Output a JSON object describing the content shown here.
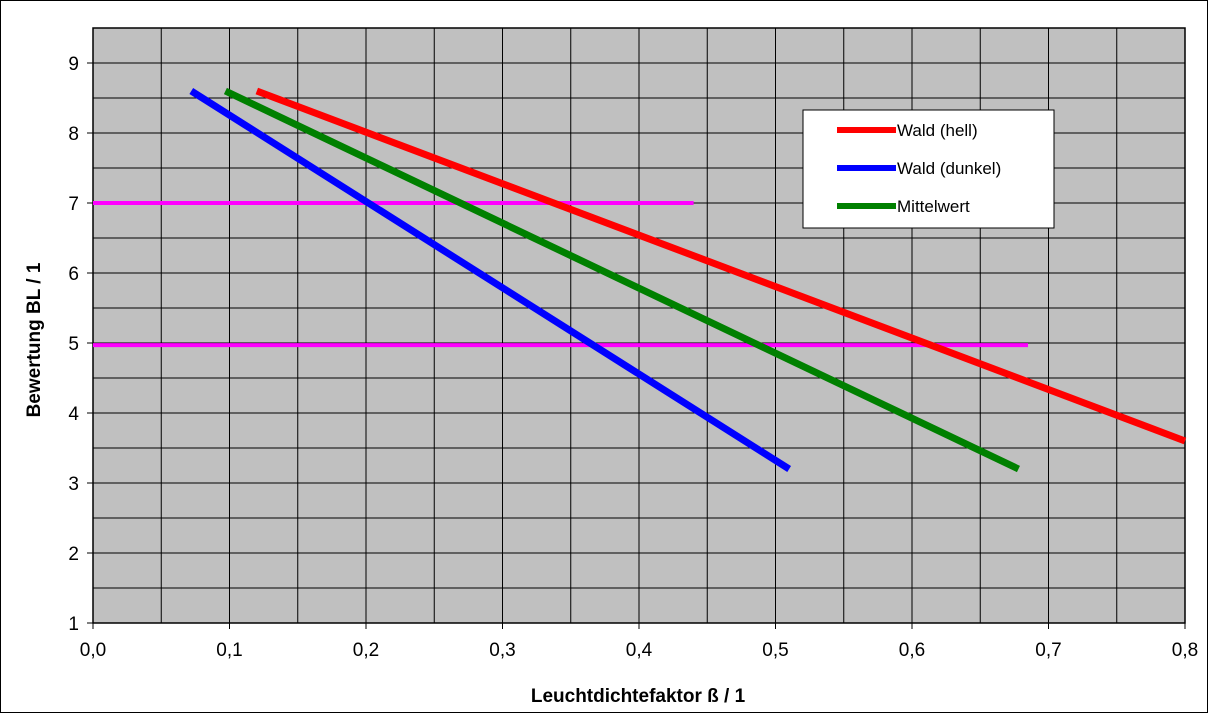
{
  "chart_data": {
    "type": "line",
    "xlabel": "Leuchtdichtefaktor ß / 1",
    "ylabel": "Bewertung BL / 1",
    "xlim": [
      0.0,
      0.8
    ],
    "ylim": [
      1,
      9.5
    ],
    "x_ticks": [
      {
        "value": 0.0,
        "label": "0,0"
      },
      {
        "value": 0.1,
        "label": "0,1"
      },
      {
        "value": 0.2,
        "label": "0,2"
      },
      {
        "value": 0.3,
        "label": "0,3"
      },
      {
        "value": 0.4,
        "label": "0,4"
      },
      {
        "value": 0.5,
        "label": "0,5"
      },
      {
        "value": 0.6,
        "label": "0,6"
      },
      {
        "value": 0.7,
        "label": "0,7"
      },
      {
        "value": 0.8,
        "label": "0,8"
      }
    ],
    "y_ticks": [
      {
        "value": 1,
        "label": "1"
      },
      {
        "value": 2,
        "label": "2"
      },
      {
        "value": 3,
        "label": "3"
      },
      {
        "value": 4,
        "label": "4"
      },
      {
        "value": 5,
        "label": "5"
      },
      {
        "value": 6,
        "label": "6"
      },
      {
        "value": 7,
        "label": "7"
      },
      {
        "value": 8,
        "label": "8"
      },
      {
        "value": 9,
        "label": "9"
      }
    ],
    "x_grid_step": 0.05,
    "y_grid_step": 0.5,
    "grid": true,
    "plot_background": "#c0c0c0",
    "legend_position": "top-right",
    "series": [
      {
        "name": "Wald (hell)",
        "color": "#ff0000",
        "x": [
          0.12,
          0.8
        ],
        "y": [
          8.6,
          3.6
        ]
      },
      {
        "name": "Wald (dunkel)",
        "color": "#0000ff",
        "x": [
          0.072,
          0.51
        ],
        "y": [
          8.6,
          3.2
        ]
      },
      {
        "name": "Mittelwert",
        "color": "#008000",
        "x": [
          0.097,
          0.678
        ],
        "y": [
          8.6,
          3.2
        ]
      }
    ],
    "reference_lines": [
      {
        "color": "#ff00ff",
        "x": [
          0.0,
          0.44
        ],
        "y": [
          7.0,
          7.0
        ]
      },
      {
        "color": "#ff00ff",
        "x": [
          0.0,
          0.685
        ],
        "y": [
          4.97,
          4.97
        ]
      }
    ]
  }
}
